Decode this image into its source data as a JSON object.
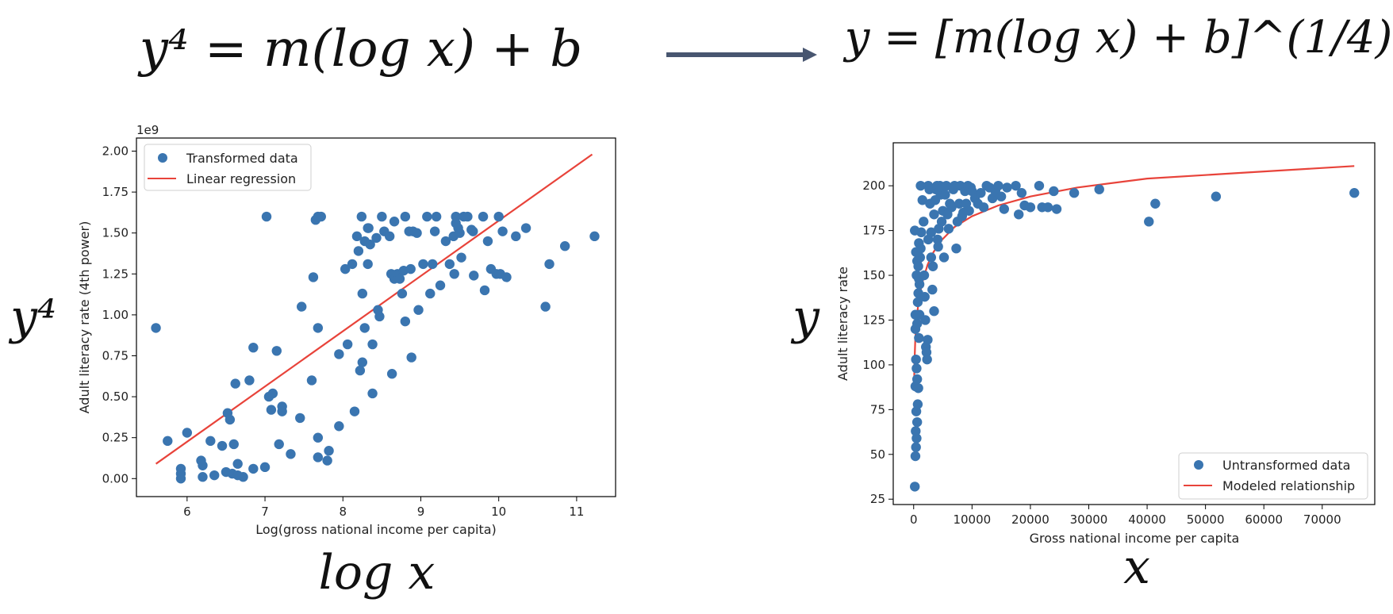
{
  "equations": {
    "left": "y⁴ = m(log x) + b",
    "right": "y = [m(log x) + b]^(1/4)",
    "left_y_label": "y⁴",
    "left_x_label": "log x",
    "right_y_label": "y",
    "right_x_label": "x"
  },
  "colors": {
    "points": "#3a75b0",
    "line": "#e8433a",
    "arrow": "#485670"
  },
  "chart_data": [
    {
      "type": "scatter",
      "title": "",
      "xlabel": "Log(gross national income per capita)",
      "ylabel": "Adult literacy rate (4th power)",
      "offset_text": "1e9",
      "xlim": [
        5.35,
        11.5
      ],
      "ylim": [
        -0.11,
        2.08
      ],
      "xticks": [
        6,
        7,
        8,
        9,
        10,
        11
      ],
      "xtick_labels": [
        "6",
        "7",
        "8",
        "9",
        "10",
        "11"
      ],
      "yticks": [
        0,
        0.25,
        0.5,
        0.75,
        1.0,
        1.25,
        1.5,
        1.75,
        2.0
      ],
      "ytick_labels": [
        "0.00",
        "0.25",
        "0.50",
        "0.75",
        "1.00",
        "1.25",
        "1.50",
        "1.75",
        "2.00"
      ],
      "legend": {
        "position": "upper-left",
        "entries": [
          "Transformed data",
          "Linear regression"
        ]
      },
      "series": [
        {
          "name": "Transformed data",
          "kind": "scatter",
          "points": [
            [
              5.6,
              0.92
            ],
            [
              5.75,
              0.23
            ],
            [
              5.92,
              0.06
            ],
            [
              5.92,
              0.03
            ],
            [
              5.92,
              0.0
            ],
            [
              6.0,
              0.28
            ],
            [
              6.18,
              0.11
            ],
            [
              6.2,
              0.08
            ],
            [
              6.2,
              0.01
            ],
            [
              6.3,
              0.23
            ],
            [
              6.35,
              0.02
            ],
            [
              6.45,
              0.2
            ],
            [
              6.5,
              0.04
            ],
            [
              6.52,
              0.4
            ],
            [
              6.55,
              0.36
            ],
            [
              6.58,
              0.03
            ],
            [
              6.6,
              0.21
            ],
            [
              6.62,
              0.58
            ],
            [
              6.65,
              0.02
            ],
            [
              6.65,
              0.09
            ],
            [
              6.72,
              0.01
            ],
            [
              6.8,
              0.6
            ],
            [
              6.85,
              0.8
            ],
            [
              6.85,
              0.06
            ],
            [
              7.0,
              0.07
            ],
            [
              7.02,
              1.6
            ],
            [
              7.05,
              0.5
            ],
            [
              7.08,
              0.42
            ],
            [
              7.1,
              0.52
            ],
            [
              7.15,
              0.78
            ],
            [
              7.18,
              0.21
            ],
            [
              7.22,
              0.41
            ],
            [
              7.22,
              0.44
            ],
            [
              7.33,
              0.15
            ],
            [
              7.45,
              0.37
            ],
            [
              7.47,
              1.05
            ],
            [
              7.6,
              0.6
            ],
            [
              7.62,
              1.23
            ],
            [
              7.65,
              1.58
            ],
            [
              7.68,
              1.6
            ],
            [
              7.72,
              1.6
            ],
            [
              7.68,
              0.92
            ],
            [
              7.68,
              0.25
            ],
            [
              7.68,
              0.13
            ],
            [
              7.8,
              0.11
            ],
            [
              7.82,
              0.17
            ],
            [
              7.95,
              0.76
            ],
            [
              7.95,
              0.32
            ],
            [
              8.03,
              1.28
            ],
            [
              8.06,
              0.82
            ],
            [
              8.12,
              1.31
            ],
            [
              8.15,
              0.41
            ],
            [
              8.18,
              1.48
            ],
            [
              8.2,
              1.39
            ],
            [
              8.22,
              0.66
            ],
            [
              8.24,
              1.6
            ],
            [
              8.25,
              1.13
            ],
            [
              8.25,
              0.71
            ],
            [
              8.28,
              1.45
            ],
            [
              8.28,
              0.92
            ],
            [
              8.32,
              1.53
            ],
            [
              8.33,
              1.53
            ],
            [
              8.32,
              1.31
            ],
            [
              8.35,
              1.43
            ],
            [
              8.38,
              0.82
            ],
            [
              8.38,
              0.52
            ],
            [
              8.43,
              1.47
            ],
            [
              8.45,
              1.03
            ],
            [
              8.47,
              0.99
            ],
            [
              8.5,
              1.6
            ],
            [
              8.53,
              1.51
            ],
            [
              8.6,
              1.48
            ],
            [
              8.62,
              1.25
            ],
            [
              8.63,
              0.64
            ],
            [
              8.66,
              1.57
            ],
            [
              8.66,
              1.22
            ],
            [
              8.7,
              1.25
            ],
            [
              8.73,
              1.22
            ],
            [
              8.76,
              1.13
            ],
            [
              8.78,
              1.27
            ],
            [
              8.8,
              1.6
            ],
            [
              8.8,
              0.96
            ],
            [
              8.85,
              1.51
            ],
            [
              8.87,
              1.28
            ],
            [
              8.88,
              0.74
            ],
            [
              8.9,
              1.51
            ],
            [
              8.95,
              1.5
            ],
            [
              8.97,
              1.03
            ],
            [
              9.03,
              1.31
            ],
            [
              9.08,
              1.6
            ],
            [
              9.12,
              1.13
            ],
            [
              9.15,
              1.31
            ],
            [
              9.18,
              1.51
            ],
            [
              9.2,
              1.6
            ],
            [
              9.25,
              1.18
            ],
            [
              9.32,
              1.45
            ],
            [
              9.37,
              1.31
            ],
            [
              9.42,
              1.48
            ],
            [
              9.43,
              1.25
            ],
            [
              9.45,
              1.6
            ],
            [
              9.45,
              1.56
            ],
            [
              9.48,
              1.53
            ],
            [
              9.5,
              1.5
            ],
            [
              9.52,
              1.35
            ],
            [
              9.55,
              1.6
            ],
            [
              9.6,
              1.6
            ],
            [
              9.65,
              1.52
            ],
            [
              9.67,
              1.51
            ],
            [
              9.68,
              1.24
            ],
            [
              9.8,
              1.6
            ],
            [
              9.82,
              1.15
            ],
            [
              9.86,
              1.45
            ],
            [
              9.9,
              1.28
            ],
            [
              9.97,
              1.25
            ],
            [
              10.0,
              1.6
            ],
            [
              10.02,
              1.25
            ],
            [
              10.05,
              1.51
            ],
            [
              10.1,
              1.23
            ],
            [
              10.22,
              1.48
            ],
            [
              10.35,
              1.53
            ],
            [
              10.6,
              1.05
            ],
            [
              10.65,
              1.31
            ],
            [
              10.85,
              1.42
            ],
            [
              11.23,
              1.48
            ]
          ]
        },
        {
          "name": "Linear regression",
          "kind": "line",
          "x": [
            5.6,
            11.2
          ],
          "y": [
            0.09,
            1.98
          ]
        }
      ]
    },
    {
      "type": "scatter",
      "title": "",
      "xlabel": "Gross national income per capita",
      "ylabel": "Adult literacy rate",
      "xlim": [
        -3500,
        79000
      ],
      "ylim": [
        22,
        224
      ],
      "xticks": [
        0,
        10000,
        20000,
        30000,
        40000,
        50000,
        60000,
        70000
      ],
      "xtick_labels": [
        "0",
        "10000",
        "20000",
        "30000",
        "40000",
        "50000",
        "60000",
        "70000"
      ],
      "yticks": [
        25,
        50,
        75,
        100,
        125,
        150,
        175,
        200
      ],
      "ytick_labels": [
        "25",
        "50",
        "75",
        "100",
        "125",
        "150",
        "175",
        "200"
      ],
      "legend": {
        "position": "lower-right",
        "entries": [
          "Untransformed data",
          "Modeled relationship"
        ]
      },
      "series": [
        {
          "name": "Untransformed data",
          "kind": "scatter",
          "points": [
            [
              200,
              32
            ],
            [
              300,
              49
            ],
            [
              400,
              54
            ],
            [
              500,
              59
            ],
            [
              350,
              63
            ],
            [
              600,
              68
            ],
            [
              450,
              74
            ],
            [
              700,
              78
            ],
            [
              300,
              88
            ],
            [
              800,
              87
            ],
            [
              600,
              92
            ],
            [
              500,
              98
            ],
            [
              400,
              103
            ],
            [
              900,
              115
            ],
            [
              300,
              120
            ],
            [
              600,
              123
            ],
            [
              1000,
              128
            ],
            [
              300,
              128
            ],
            [
              700,
              135
            ],
            [
              800,
              140
            ],
            [
              1000,
              145
            ],
            [
              500,
              150
            ],
            [
              900,
              148
            ],
            [
              800,
              155
            ],
            [
              600,
              158
            ],
            [
              1100,
              160
            ],
            [
              400,
              163
            ],
            [
              1200,
              165
            ],
            [
              900,
              168
            ],
            [
              1300,
              174
            ],
            [
              200,
              175
            ],
            [
              1200,
              200
            ],
            [
              1500,
              192
            ],
            [
              1700,
              180
            ],
            [
              1800,
              150
            ],
            [
              1900,
              138
            ],
            [
              2000,
              125
            ],
            [
              2100,
              110
            ],
            [
              2200,
              107
            ],
            [
              2300,
              103
            ],
            [
              2400,
              114
            ],
            [
              2500,
              170
            ],
            [
              2500,
              200
            ],
            [
              2700,
              198
            ],
            [
              2800,
              190
            ],
            [
              3000,
              174
            ],
            [
              3000,
              160
            ],
            [
              3200,
              142
            ],
            [
              3300,
              155
            ],
            [
              3500,
              130
            ],
            [
              3500,
              184
            ],
            [
              3700,
              192
            ],
            [
              3800,
              198
            ],
            [
              4000,
              200
            ],
            [
              4100,
              170
            ],
            [
              4200,
              166
            ],
            [
              4300,
              176
            ],
            [
              4400,
              197
            ],
            [
              4500,
              200
            ],
            [
              4600,
              195
            ],
            [
              4800,
              180
            ],
            [
              5000,
              186
            ],
            [
              5000,
              199
            ],
            [
              5200,
              160
            ],
            [
              5400,
              195
            ],
            [
              5600,
              200
            ],
            [
              5800,
              184
            ],
            [
              6000,
              176
            ],
            [
              6200,
              190
            ],
            [
              6500,
              188
            ],
            [
              6800,
              198
            ],
            [
              7000,
              200
            ],
            [
              7300,
              165
            ],
            [
              7500,
              180
            ],
            [
              7800,
              190
            ],
            [
              8000,
              200
            ],
            [
              8300,
              183
            ],
            [
              8500,
              185
            ],
            [
              8800,
              197
            ],
            [
              9000,
              190
            ],
            [
              9300,
              200
            ],
            [
              9500,
              186
            ],
            [
              9800,
              199
            ],
            [
              10000,
              197
            ],
            [
              10500,
              193
            ],
            [
              11000,
              190
            ],
            [
              11500,
              196
            ],
            [
              12000,
              188
            ],
            [
              12500,
              200
            ],
            [
              13000,
              199
            ],
            [
              13500,
              193
            ],
            [
              14000,
              197
            ],
            [
              14500,
              200
            ],
            [
              15000,
              194
            ],
            [
              15500,
              187
            ],
            [
              16000,
              199
            ],
            [
              17500,
              200
            ],
            [
              18000,
              184
            ],
            [
              18500,
              196
            ],
            [
              19000,
              189
            ],
            [
              20000,
              188
            ],
            [
              21500,
              200
            ],
            [
              22000,
              188
            ],
            [
              23000,
              188
            ],
            [
              24000,
              197
            ],
            [
              24500,
              187
            ],
            [
              27500,
              196
            ],
            [
              31800,
              198
            ],
            [
              40300,
              180
            ],
            [
              41400,
              190
            ],
            [
              51800,
              194
            ],
            [
              75500,
              196
            ]
          ]
        },
        {
          "name": "Modeled relationship",
          "kind": "curve",
          "x": [
            80,
            120,
            180,
            260,
            380,
            550,
            800,
            1150,
            1650,
            2400,
            3400,
            4900,
            7000,
            10000,
            14500,
            20000,
            28000,
            40000,
            55000,
            75500
          ],
          "y": [
            88,
            97,
            105,
            113,
            120,
            127,
            134,
            141,
            148,
            156,
            163,
            170,
            177,
            183,
            189,
            194,
            199,
            204,
            207,
            211
          ]
        }
      ]
    }
  ]
}
